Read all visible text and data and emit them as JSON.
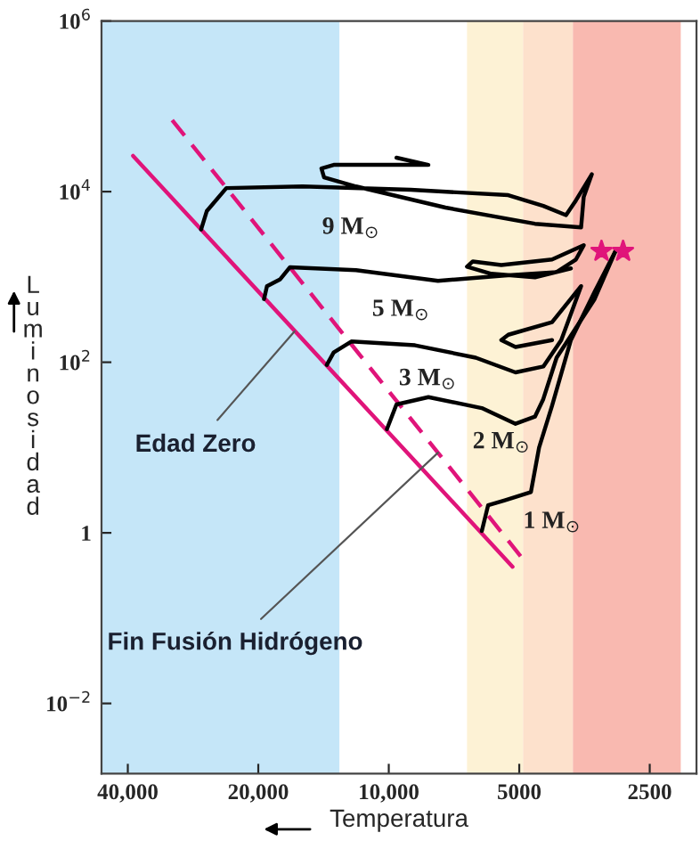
{
  "chart_data": {
    "type": "line",
    "xlabel": "Temperatura",
    "ylabel": "Luminosidad",
    "log": "xy",
    "xlim": [
      46000,
      1950
    ],
    "ylim": [
      0.0015,
      1000000
    ],
    "xticks": [
      {
        "value": 40000,
        "label": "40,000"
      },
      {
        "value": 20000,
        "label": "20,000"
      },
      {
        "value": 10000,
        "label": "10,000"
      },
      5000,
      2500
    ],
    "yticks": [
      {
        "value": 1000000,
        "label": "10$^{6}$"
      },
      {
        "value": 10000,
        "label": "10$^{4}$"
      },
      {
        "value": 100,
        "label": "10$^{2}$"
      },
      1,
      {
        "value": 0.01,
        "label": "10$^{−2}$"
      }
    ],
    "grid": false,
    "legend": false,
    "marker": "none",
    "bands": [
      {
        "axis": "x",
        "from": 46000,
        "to": 13000,
        "color": "#c5e6f8"
      },
      {
        "axis": "x",
        "from": 6600,
        "to": 4900,
        "color": "#fdf2d5"
      },
      {
        "axis": "x",
        "from": 4900,
        "to": 3760,
        "color": "#fde1cc"
      },
      {
        "axis": "x",
        "from": 3760,
        "to": 2120,
        "color": "#f9b9b0"
      }
    ],
    "series": [
      {
        "color": "#e0147a",
        "line_style": "solid",
        "x": [
          38900,
          5180
        ],
        "values": [
          26300,
          0.4
        ]
      },
      {
        "color": "#e0147a",
        "line_style": "dashed",
        "x": [
          31600,
          4900
        ],
        "values": [
          69000,
          0.49
        ]
      },
      {
        "name": "9 M$_{⊙}$",
        "color": "#000000",
        "x": [
          27100,
          26300,
          23700,
          15800,
          8900,
          5300,
          4400,
          3900,
          3700,
          3400,
          3550,
          3600,
          4600,
          7400,
          11900,
          14100,
          14300,
          13400,
          8100,
          9600
        ],
        "values": [
          3600,
          5900,
          11000,
          11500,
          10500,
          9100,
          6800,
          5300,
          7900,
          16000,
          8700,
          3800,
          4200,
          6500,
          11500,
          14700,
          18700,
          20600,
          20600,
          25000
        ]
      },
      {
        "name": "5 M$_{⊙}$",
        "color": "#000000",
        "x": [
          19400,
          19100,
          17800,
          16900,
          11900,
          7700,
          5400,
          4100,
          3700,
          3550,
          4200,
          5500,
          6400,
          6600,
          5800,
          4600,
          3800
        ],
        "values": [
          550,
          780,
          940,
          1300,
          1200,
          900,
          1040,
          1140,
          1600,
          2350,
          1600,
          1380,
          1520,
          1320,
          1090,
          990,
          1260
        ]
      },
      {
        "name": "3 M$_{⊙}$",
        "color": "#000000",
        "x": [
          13900,
          13400,
          12200,
          8700,
          6300,
          5100,
          4400,
          4000,
          3600,
          4200,
          5300,
          5500,
          5100,
          4200
        ],
        "values": [
          93,
          130,
          175,
          158,
          113,
          76,
          89,
          182,
          780,
          295,
          210,
          182,
          151,
          182
        ]
      },
      {
        "name": "2 M$_{⊙}$",
        "color": "#000000",
        "x": [
          10100,
          9600,
          8100,
          6100,
          5100,
          4600,
          4400,
          4100,
          3350,
          3000
        ],
        "values": [
          16.4,
          32,
          39,
          29,
          19,
          23,
          37,
          113,
          550,
          2000
        ]
      },
      {
        "name": "1 M$_{⊙}$",
        "color": "#000000",
        "x": [
          6100,
          5900,
          5400,
          4700,
          4500,
          4200,
          3800,
          3350,
          3000
        ],
        "values": [
          1.05,
          2.1,
          2.4,
          3.0,
          10,
          31,
          182,
          670,
          2000
        ]
      },
      {
        "type": "scatter",
        "marker": "star",
        "color": "#e0147a",
        "x": [
          3230,
          2880
        ],
        "values": [
          2000,
          2000
        ]
      }
    ],
    "annotations": [
      {
        "text": "Edad Zero",
        "x": 16500,
        "y": 230
      },
      {
        "text": "Fin Fusión Hidrógeno",
        "x": 7700,
        "y": 8.7
      }
    ]
  }
}
